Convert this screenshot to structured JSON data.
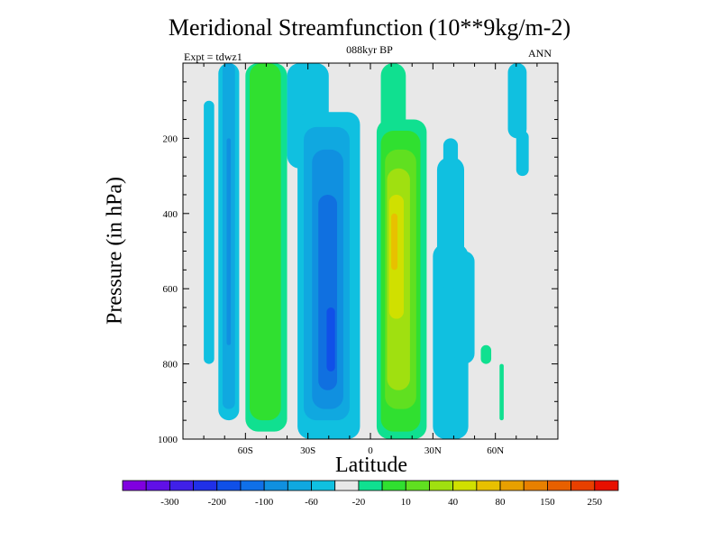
{
  "chart_data": {
    "type": "heatmap",
    "title": "Meridional Streamfunction (10**9kg/m-2)",
    "subtitle": "088kyr BP",
    "left_string": "Expt = tdwz1",
    "right_string": "ANN",
    "xlabel": "Latitude",
    "ylabel": "Pressure (in hPa)",
    "xlim": [
      -90,
      90
    ],
    "ylim": [
      1000,
      0
    ],
    "x_ticks": [
      {
        "value": -60,
        "label": "60S"
      },
      {
        "value": -30,
        "label": "30S"
      },
      {
        "value": 0,
        "label": "0"
      },
      {
        "value": 30,
        "label": "30N"
      },
      {
        "value": 60,
        "label": "60N"
      }
    ],
    "y_ticks": [
      {
        "value": 200,
        "label": "200"
      },
      {
        "value": 400,
        "label": "400"
      },
      {
        "value": 600,
        "label": "600"
      },
      {
        "value": 800,
        "label": "800"
      },
      {
        "value": 1000,
        "label": "1000"
      }
    ],
    "colorbar": {
      "colors": [
        "#8000e0",
        "#6010e8",
        "#4020e8",
        "#2030e8",
        "#1050e8",
        "#1070e8",
        "#1090e0",
        "#10a8e0",
        "#10c0e0",
        "#e8e8e8",
        "#10e090",
        "#30e030",
        "#60e020",
        "#a0e010",
        "#d0e000",
        "#e8c000",
        "#e8a000",
        "#e88000",
        "#e86000",
        "#e84000",
        "#e81000"
      ],
      "labels": [
        {
          "after_index": 1,
          "text": "-300"
        },
        {
          "after_index": 3,
          "text": "-200"
        },
        {
          "after_index": 5,
          "text": "-100"
        },
        {
          "after_index": 7,
          "text": "-60"
        },
        {
          "after_index": 9,
          "text": "-20"
        },
        {
          "after_index": 11,
          "text": "10"
        },
        {
          "after_index": 13,
          "text": "40"
        },
        {
          "after_index": 15,
          "text": "80"
        },
        {
          "after_index": 17,
          "text": "150"
        },
        {
          "after_index": 19,
          "text": "250"
        }
      ]
    },
    "background_color": "#e8e8e8",
    "cells": [
      {
        "lat": [
          -80,
          -75
        ],
        "p": [
          100,
          800
        ],
        "color": "#10c0e0"
      },
      {
        "lat": [
          -73,
          -63
        ],
        "p": [
          0,
          950
        ],
        "color": "#10c0e0"
      },
      {
        "lat": [
          -71,
          -65
        ],
        "p": [
          0,
          920
        ],
        "color": "#10a8e0"
      },
      {
        "lat": [
          -69,
          -67
        ],
        "p": [
          200,
          750
        ],
        "color": "#1090e0"
      },
      {
        "lat": [
          -60,
          -40
        ],
        "p": [
          0,
          980
        ],
        "color": "#10e090"
      },
      {
        "lat": [
          -58,
          -43
        ],
        "p": [
          0,
          950
        ],
        "color": "#30e030"
      },
      {
        "lat": [
          -40,
          -20
        ],
        "p": [
          0,
          280
        ],
        "color": "#10c0e0"
      },
      {
        "lat": [
          -35,
          -5
        ],
        "p": [
          130,
          1000
        ],
        "color": "#10c0e0"
      },
      {
        "lat": [
          -32,
          -10
        ],
        "p": [
          170,
          950
        ],
        "color": "#10a8e0"
      },
      {
        "lat": [
          -28,
          -13
        ],
        "p": [
          230,
          920
        ],
        "color": "#1090e0"
      },
      {
        "lat": [
          -25,
          -16
        ],
        "p": [
          350,
          870
        ],
        "color": "#1070e0"
      },
      {
        "lat": [
          -21,
          -17
        ],
        "p": [
          650,
          820
        ],
        "color": "#1050e8"
      },
      {
        "lat": [
          5,
          17
        ],
        "p": [
          0,
          200
        ],
        "color": "#10e090"
      },
      {
        "lat": [
          3,
          27
        ],
        "p": [
          150,
          1000
        ],
        "color": "#10e090"
      },
      {
        "lat": [
          5,
          24
        ],
        "p": [
          180,
          980
        ],
        "color": "#30e030"
      },
      {
        "lat": [
          7,
          22
        ],
        "p": [
          230,
          920
        ],
        "color": "#60e020"
      },
      {
        "lat": [
          8,
          19
        ],
        "p": [
          280,
          870
        ],
        "color": "#a0e010"
      },
      {
        "lat": [
          9,
          16
        ],
        "p": [
          350,
          680
        ],
        "color": "#d0e000"
      },
      {
        "lat": [
          10,
          13
        ],
        "p": [
          400,
          550
        ],
        "color": "#e8c000"
      },
      {
        "lat": [
          30,
          47
        ],
        "p": [
          480,
          1000
        ],
        "color": "#10c0e0"
      },
      {
        "lat": [
          32,
          45
        ],
        "p": [
          250,
          600
        ],
        "color": "#10c0e0"
      },
      {
        "lat": [
          35,
          42
        ],
        "p": [
          200,
          450
        ],
        "color": "#10c0e0"
      },
      {
        "lat": [
          40,
          50
        ],
        "p": [
          500,
          800
        ],
        "color": "#10c0e0"
      },
      {
        "lat": [
          66,
          75
        ],
        "p": [
          0,
          200
        ],
        "color": "#10c0e0"
      },
      {
        "lat": [
          70,
          76
        ],
        "p": [
          180,
          300
        ],
        "color": "#10c0e0"
      },
      {
        "lat": [
          62,
          64
        ],
        "p": [
          800,
          950
        ],
        "color": "#10e090"
      },
      {
        "lat": [
          53,
          58
        ],
        "p": [
          750,
          800
        ],
        "color": "#10e090"
      }
    ]
  }
}
